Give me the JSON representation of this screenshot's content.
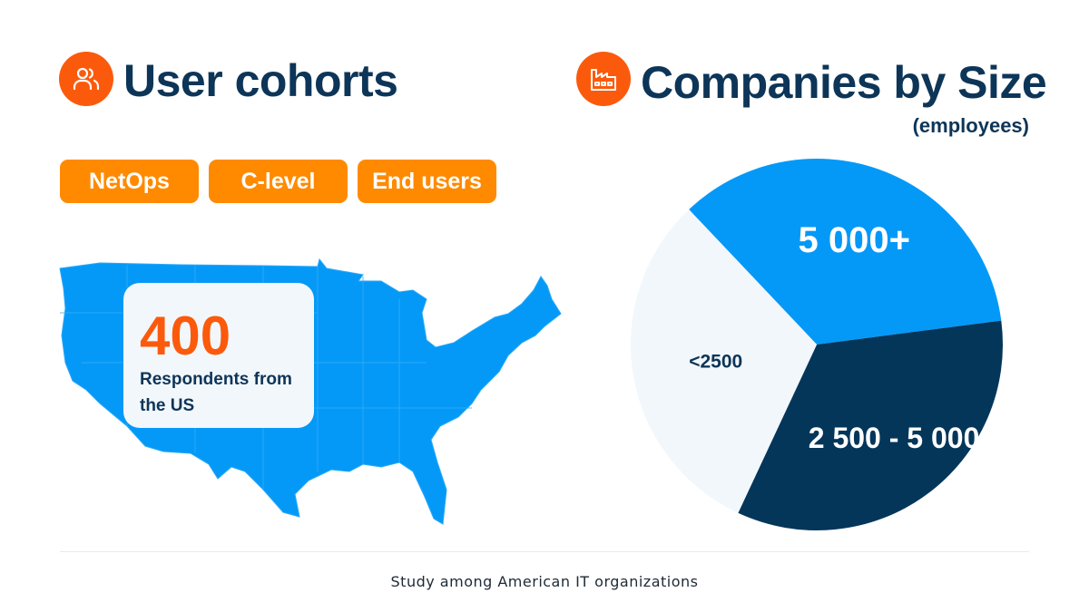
{
  "left": {
    "title": "User cohorts",
    "icon": "users-icon",
    "chips": [
      "NetOps",
      "C-level",
      "End users"
    ],
    "stat": {
      "value": "400",
      "label": "Respondents from the US"
    }
  },
  "right": {
    "title": "Companies by Size",
    "subtitle": "(employees)",
    "icon": "factory-icon"
  },
  "footer": "Study among American IT organizations",
  "colors": {
    "orange": "#fb5a0c",
    "chip": "#ff8a00",
    "navy": "#0d3558",
    "blue": "#0499f7",
    "light": "#f2f7fb"
  },
  "chart_data": {
    "type": "pie",
    "title": "Companies by Size",
    "subtitle": "(employees)",
    "slices": [
      {
        "label": "5 000+",
        "value": 35,
        "color": "#0499f7"
      },
      {
        "label": "2 500 - 5 000",
        "value": 34,
        "color": "#04365a"
      },
      {
        "label": "<2500",
        "value": 31,
        "color": "#f2f7fb"
      }
    ]
  }
}
